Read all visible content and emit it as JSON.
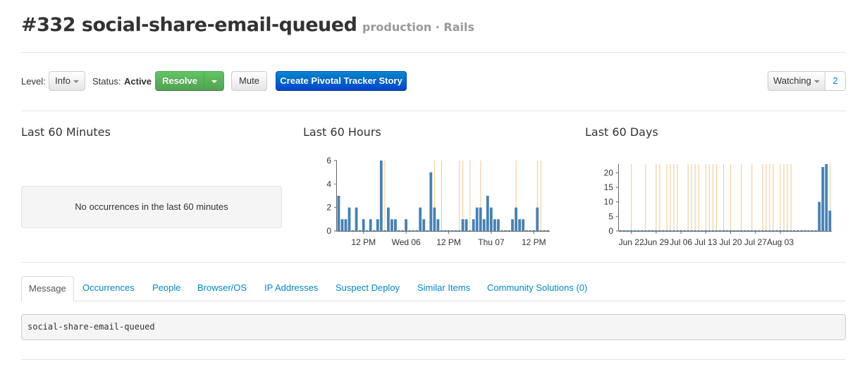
{
  "header": {
    "title": "#332 social-share-email-queued",
    "subtitle": "production · Rails"
  },
  "controls": {
    "level_label": "Level:",
    "level_value": "Info",
    "status_label": "Status:",
    "status_value": "Active",
    "resolve_label": "Resolve",
    "mute_label": "Mute",
    "pivotal_label": "Create Pivotal Tracker Story",
    "watching_label": "Watching",
    "watching_count": "2"
  },
  "sections": {
    "minutes_title": "Last 60 Minutes",
    "minutes_empty": "No occurrences in the last 60 minutes",
    "hours_title": "Last 60 Hours",
    "days_title": "Last 60 Days"
  },
  "colors": {
    "bar": "#4682b4",
    "deploy_line": "#f5c98a",
    "link": "#0088cc",
    "resolve_green": "#5bb75b",
    "pivotal_blue": "#0066cc"
  },
  "chart_data": [
    {
      "type": "bar",
      "title": "Last 60 Hours",
      "ylim": [
        0,
        6
      ],
      "yticks": [
        0,
        2,
        4,
        6
      ],
      "x_tick_labels": [
        "12 PM",
        "Wed 06",
        "12 PM",
        "Thu 07",
        "12 PM"
      ],
      "x_tick_index": [
        7,
        19,
        31,
        43,
        55
      ],
      "values": [
        3,
        1,
        1,
        2,
        0,
        2,
        0,
        1,
        0,
        1,
        0,
        1,
        6,
        0,
        2,
        1,
        1,
        0,
        0,
        1,
        0,
        0,
        0,
        2,
        1,
        0,
        5,
        2,
        1,
        0,
        0,
        0,
        0,
        0,
        0,
        1,
        1,
        0,
        1,
        2,
        2,
        1,
        3,
        2,
        1,
        1,
        0,
        0,
        0,
        1,
        2,
        1,
        1,
        0,
        0,
        0,
        2,
        0,
        0,
        0
      ],
      "deploy_marks": [
        13,
        27,
        29,
        34,
        35,
        37,
        40,
        50,
        56,
        57
      ]
    },
    {
      "type": "bar",
      "title": "Last 60 Days",
      "ylim": [
        0,
        23
      ],
      "yticks": [
        0,
        5,
        10,
        15,
        20
      ],
      "x_tick_labels": [
        "Jun 22",
        "Jun 29",
        "Jul 06",
        "Jul 13",
        "Jul 20",
        "Jul 27",
        "Aug 03"
      ],
      "x_tick_index": [
        3,
        10,
        17,
        24,
        31,
        38,
        45
      ],
      "values": [
        0,
        0,
        0,
        0,
        0,
        0,
        0,
        0,
        0,
        0,
        0,
        0,
        0,
        0,
        0,
        0,
        0,
        0,
        0,
        0,
        0,
        0,
        0,
        0,
        0,
        0,
        0,
        0,
        0,
        0,
        0,
        0,
        0,
        0,
        0,
        0,
        0,
        0,
        0,
        0,
        0,
        0,
        0,
        0,
        0,
        0,
        0,
        0,
        0,
        0,
        0,
        0,
        0,
        0,
        0,
        0,
        10,
        22,
        23,
        7
      ],
      "deploy_marks": [
        3,
        7,
        10,
        11,
        13,
        14,
        15,
        16,
        19,
        20,
        21,
        22,
        24,
        25,
        26,
        27,
        29,
        31,
        34,
        37,
        40,
        41,
        42,
        43,
        45,
        46,
        47,
        48,
        59
      ]
    }
  ],
  "tabs": [
    {
      "label": "Message",
      "active": true
    },
    {
      "label": "Occurrences"
    },
    {
      "label": "People"
    },
    {
      "label": "Browser/OS"
    },
    {
      "label": "IP Addresses"
    },
    {
      "label": "Suspect Deploy"
    },
    {
      "label": "Similar Items"
    },
    {
      "label": "Community Solutions (0)"
    }
  ],
  "message": {
    "text": "social-share-email-queued"
  }
}
